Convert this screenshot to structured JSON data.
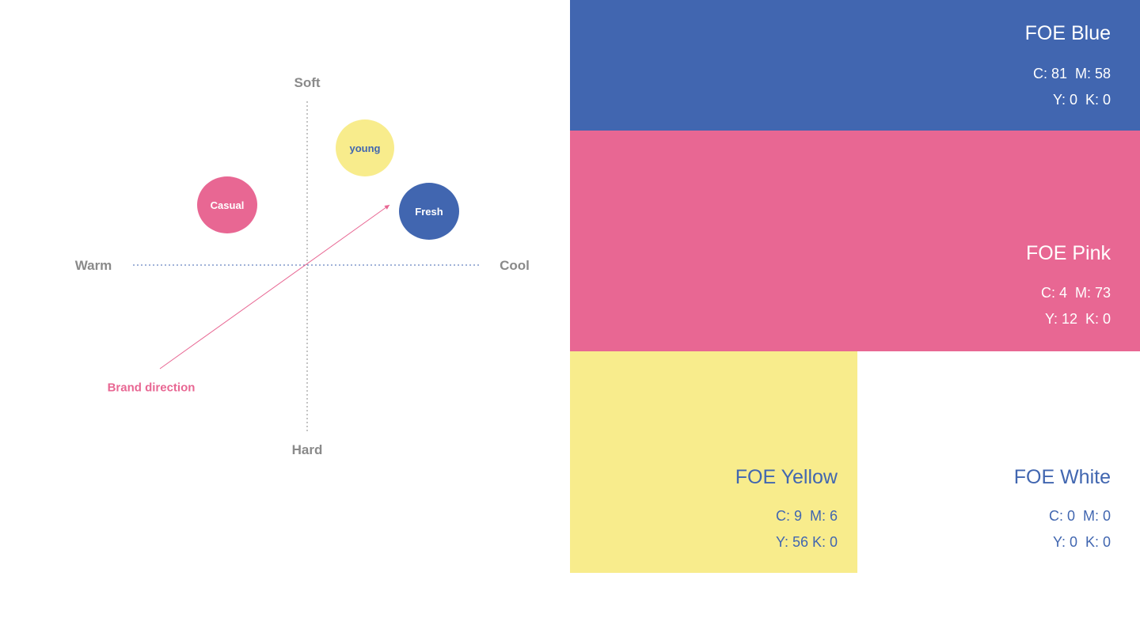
{
  "map": {
    "axes": {
      "top": "Soft",
      "bottom": "Hard",
      "left": "Warm",
      "right": "Cool"
    },
    "bubbles": [
      {
        "label": "young",
        "fill": "#f8ec8c",
        "text_color": "#4166b0"
      },
      {
        "label": "Casual",
        "fill": "#e86793",
        "text_color": "#ffffff"
      },
      {
        "label": "Fresh",
        "fill": "#4166b0",
        "text_color": "#ffffff"
      }
    ],
    "arrow": {
      "label": "Brand direction",
      "color": "#e86793"
    },
    "axis_colors": {
      "vertical": "#8a8a8a",
      "horizontal": "#4166b0"
    }
  },
  "palette": {
    "blue": {
      "name": "FOE Blue",
      "cmyk_line1": "C: 81  M: 58",
      "cmyk_line2": "Y: 0  K: 0",
      "fill": "#4166b0",
      "text_color": "#ffffff"
    },
    "pink": {
      "name": "FOE Pink",
      "cmyk_line1": "C: 4  M: 73",
      "cmyk_line2": "Y: 12  K: 0",
      "fill": "#e86793",
      "text_color": "#ffffff"
    },
    "yellow": {
      "name": "FOE Yellow",
      "cmyk_line1": "C: 9  M: 6",
      "cmyk_line2": "Y: 56 K: 0",
      "fill": "#f8ec8c",
      "text_color": "#4166b0"
    },
    "white": {
      "name": "FOE White",
      "cmyk_line1": "C: 0  M: 0",
      "cmyk_line2": "Y: 0  K: 0",
      "fill": "#ffffff",
      "text_color": "#4166b0"
    }
  }
}
